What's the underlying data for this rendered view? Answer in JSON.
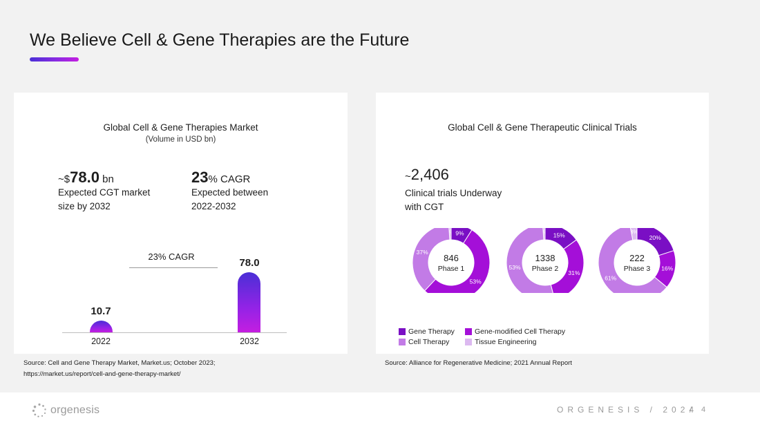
{
  "title": "We Believe Cell & Gene Therapies are the Future",
  "accent_gradient": [
    "#4a2fd6",
    "#8a2be2",
    "#c41ee0"
  ],
  "left_panel": {
    "heading": "Global Cell & Gene Therapies Market",
    "subheading": "(Volume in USD bn)",
    "kpi1_prefix": "~$",
    "kpi1_value": "78.0",
    "kpi1_unit": "bn",
    "kpi1_desc_line1": "Expected CGT market",
    "kpi1_desc_line2": "size by 2032",
    "kpi2_value": "23",
    "kpi2_unit": "% CAGR",
    "kpi2_desc_line1": "Expected between",
    "kpi2_desc_line2": "2022-2032",
    "source_line1": "Source: Cell and Gene Therapy Market, Market.us; October 2023;",
    "source_line2": "https://market.us/report/cell-and-gene-therapy-market/"
  },
  "right_panel": {
    "heading": "Global Cell & Gene Therapeutic Clinical Trials",
    "kpi_prefix": "~",
    "kpi_value": "2,406",
    "kpi_desc_line1": "Clinical trials Underway",
    "kpi_desc_line2": "with CGT",
    "legend": [
      {
        "label": "Gene Therapy",
        "color": "#7a0fc4"
      },
      {
        "label": "Gene-modified Cell Therapy",
        "color": "#a40fd8"
      },
      {
        "label": "Cell Therapy",
        "color": "#c27be6"
      },
      {
        "label": "Tissue Engineering",
        "color": "#dcb9f0"
      }
    ],
    "source": "Source: Alliance for Regenerative Medicine; 2021 Annual Report"
  },
  "chart_data": [
    {
      "type": "bar",
      "categories": [
        "2022",
        "2032"
      ],
      "values": [
        10.7,
        78.0
      ],
      "value_labels": [
        "10.7",
        "78.0"
      ],
      "annotation": "23% CAGR",
      "ylim": [
        0,
        78.0
      ]
    },
    {
      "type": "pie",
      "center_value": "846",
      "center_label": "Phase 1",
      "slices": [
        {
          "name": "Gene Therapy",
          "value": 9,
          "label": "9%"
        },
        {
          "name": "Gene-modified Cell Therapy",
          "value": 53,
          "label": "53%"
        },
        {
          "name": "Cell Therapy",
          "value": 37,
          "label": "37%"
        },
        {
          "name": "Tissue Engineering",
          "value": 1,
          "label": "1%"
        }
      ]
    },
    {
      "type": "pie",
      "center_value": "1338",
      "center_label": "Phase 2",
      "slices": [
        {
          "name": "Gene Therapy",
          "value": 15,
          "label": "15%"
        },
        {
          "name": "Gene-modified Cell Therapy",
          "value": 31,
          "label": "31%"
        },
        {
          "name": "Cell Therapy",
          "value": 53,
          "label": "53%"
        },
        {
          "name": "Tissue Engineering",
          "value": 1,
          "label": "1%"
        }
      ]
    },
    {
      "type": "pie",
      "center_value": "222",
      "center_label": "Phase 3",
      "slices": [
        {
          "name": "Gene Therapy",
          "value": 20,
          "label": "20%"
        },
        {
          "name": "Gene-modified Cell Therapy",
          "value": 16,
          "label": "16%"
        },
        {
          "name": "Cell Therapy",
          "value": 61,
          "label": "61%"
        },
        {
          "name": "Tissue Engineering",
          "value": 3,
          "label": "3%"
        }
      ]
    }
  ],
  "footer": {
    "logo_text": "orgenesis",
    "brand": "ORGENESIS / 2024",
    "slash": "/",
    "page_number": "4"
  }
}
